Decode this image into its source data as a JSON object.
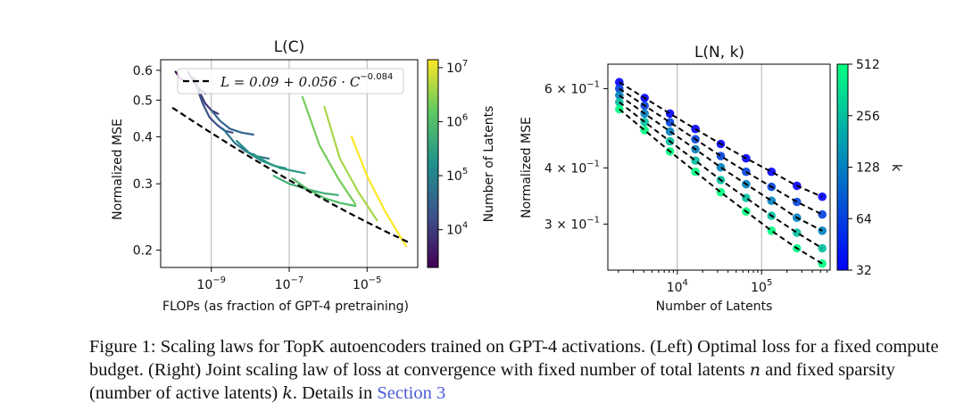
{
  "chart_data": [
    {
      "type": "line",
      "title": "L(C)",
      "xlabel": "FLOPs (as fraction of GPT-4 pretraining)",
      "ylabel": "Normalized MSE",
      "xscale": "log",
      "yscale": "log",
      "xlim": [
        5e-11,
        0.0002
      ],
      "ylim": [
        0.18,
        0.64
      ],
      "x_ticks": [
        {
          "label": "10",
          "exp": "−9",
          "value": 1e-09
        },
        {
          "label": "10",
          "exp": "−7",
          "value": 1e-07
        },
        {
          "label": "10",
          "exp": "−5",
          "value": 1e-05
        }
      ],
      "y_ticks": [
        {
          "label": "0.6",
          "value": 0.6
        },
        {
          "label": "0.5",
          "value": 0.5
        },
        {
          "label": "0.4",
          "value": 0.4
        },
        {
          "label": "0.3",
          "value": 0.3
        },
        {
          "label": "0.2",
          "value": 0.2
        }
      ],
      "grid": "vertical",
      "legend": {
        "position": "top",
        "label_prefix": "L = 0.09 + 0.056 · C",
        "label_exp": "−0.084"
      },
      "fit": {
        "a": 0.09,
        "b": 0.056,
        "exponent": -0.084,
        "x_range": [
          1e-10,
          0.00012
        ]
      },
      "colorbar": {
        "label": "Number of Latents",
        "scale": "log",
        "range": [
          2000,
          14000000
        ],
        "colormap": "viridis",
        "ticks": [
          {
            "label": "10",
            "exp": "4",
            "value": 10000
          },
          {
            "label": "10",
            "exp": "5",
            "value": 100000
          },
          {
            "label": "10",
            "exp": "6",
            "value": 1000000
          },
          {
            "label": "10",
            "exp": "7",
            "value": 10000000
          }
        ]
      },
      "series": [
        {
          "latents": 2048,
          "x": [
            1.2e-10,
            1.6e-10,
            2.2e-10
          ],
          "y": [
            0.595,
            0.57,
            0.56
          ]
        },
        {
          "latents": 4096,
          "x": [
            2.5e-10,
            3.5e-10,
            5e-10,
            7e-10
          ],
          "y": [
            0.595,
            0.56,
            0.535,
            0.52
          ]
        },
        {
          "latents": 8192,
          "x": [
            3.5e-10,
            5e-10,
            7e-10,
            1e-09,
            1.5e-09
          ],
          "y": [
            0.575,
            0.525,
            0.49,
            0.47,
            0.46
          ]
        },
        {
          "latents": 16384,
          "x": [
            4e-10,
            6e-10,
            9e-10,
            1.4e-09,
            2.2e-09,
            3.5e-09
          ],
          "y": [
            0.55,
            0.49,
            0.45,
            0.43,
            0.415,
            0.41
          ]
        },
        {
          "latents": 32768,
          "x": [
            1e-09,
            1.7e-09,
            3e-09,
            6e-09,
            1.2e-08
          ],
          "y": [
            0.47,
            0.44,
            0.42,
            0.41,
            0.405
          ]
        },
        {
          "latents": 65536,
          "x": [
            2e-09,
            4e-09,
            8e-09,
            1.5e-08,
            3e-08
          ],
          "y": [
            0.42,
            0.385,
            0.365,
            0.355,
            0.35
          ]
        },
        {
          "latents": 131072,
          "x": [
            4.5e-09,
            1e-08,
            2e-08,
            4e-08,
            8e-08
          ],
          "y": [
            0.39,
            0.36,
            0.345,
            0.335,
            0.33
          ]
        },
        {
          "latents": 262144,
          "x": [
            1.2e-08,
            3e-08,
            6e-08,
            1.2e-07,
            2.5e-07
          ],
          "y": [
            0.36,
            0.34,
            0.33,
            0.325,
            0.32
          ]
        },
        {
          "latents": 524288,
          "x": [
            4e-08,
            1e-07,
            3e-07,
            8e-07,
            1.8e-06
          ],
          "y": [
            0.315,
            0.3,
            0.29,
            0.283,
            0.28
          ]
        },
        {
          "latents": 1048576,
          "x": [
            1.2e-07,
            3e-07,
            8e-07,
            2e-06,
            5e-06
          ],
          "y": [
            0.31,
            0.29,
            0.275,
            0.267,
            0.262
          ]
        },
        {
          "latents": 2097152,
          "x": [
            2.2e-07,
            6e-07,
            1.8e-06,
            5e-06
          ],
          "y": [
            0.51,
            0.38,
            0.31,
            0.265
          ]
        },
        {
          "latents": 4194304,
          "x": [
            8e-07,
            2e-06,
            6e-06,
            1.8e-05
          ],
          "y": [
            0.48,
            0.35,
            0.285,
            0.24
          ]
        },
        {
          "latents": 16777216,
          "x": [
            4e-06,
            1e-05,
            3e-05,
            0.0001
          ],
          "y": [
            0.4,
            0.315,
            0.252,
            0.205
          ]
        }
      ]
    },
    {
      "type": "line",
      "title": "L(N, k)",
      "xlabel": "Number of Latents",
      "ylabel": "Normalized MSE",
      "xscale": "log",
      "yscale": "log",
      "xlim": [
        1500,
        650000
      ],
      "ylim": [
        0.237,
        0.68
      ],
      "x_ticks": [
        {
          "label": "10",
          "exp": "4",
          "value": 10000
        },
        {
          "label": "10",
          "exp": "5",
          "value": 100000
        }
      ],
      "y_ticks": [
        {
          "label": "6 × 10",
          "exp": "−1",
          "value": 0.6
        },
        {
          "label": "4 × 10",
          "exp": "−1",
          "value": 0.4
        },
        {
          "label": "3 × 10",
          "exp": "−1",
          "value": 0.3
        }
      ],
      "grid": "vertical",
      "colorbar": {
        "label": "k",
        "scale": "log",
        "range": [
          32,
          512
        ],
        "colormap": "winter",
        "ticks": [
          {
            "label": "512",
            "value": 512
          },
          {
            "label": "256",
            "value": 256
          },
          {
            "label": "128",
            "value": 128
          },
          {
            "label": "64",
            "value": 64
          },
          {
            "label": "32",
            "value": 32
          }
        ]
      },
      "x": [
        2048,
        4096,
        8192,
        16384,
        32768,
        65536,
        131072,
        262144,
        524288
      ],
      "series": [
        {
          "k": 32,
          "values": [
            0.62,
            0.572,
            0.528,
            0.488,
            0.452,
            0.42,
            0.392,
            0.365,
            0.345
          ]
        },
        {
          "k": 64,
          "values": [
            0.6,
            0.55,
            0.505,
            0.463,
            0.425,
            0.392,
            0.363,
            0.336,
            0.315
          ]
        },
        {
          "k": 128,
          "values": [
            0.58,
            0.528,
            0.482,
            0.44,
            0.401,
            0.368,
            0.338,
            0.31,
            0.29
          ]
        },
        {
          "k": 256,
          "values": [
            0.56,
            0.506,
            0.458,
            0.415,
            0.376,
            0.343,
            0.313,
            0.287,
            0.265
          ]
        },
        {
          "k": 512,
          "values": [
            0.54,
            0.485,
            0.435,
            0.392,
            0.353,
            0.32,
            0.29,
            0.265,
            0.245
          ]
        }
      ]
    }
  ],
  "caption": {
    "lead": "Figure 1: Scaling laws for TopK autoencoders trained on GPT-4 activations. (Left) Optimal loss for a fixed compute budget. (Right) Joint scaling law of loss at convergence with fixed number of total latents ",
    "var_n": "n",
    "mid": " and fixed sparsity (number of active latents) ",
    "var_k": "k",
    "tail": ". Details in ",
    "ref": "Section 3"
  }
}
